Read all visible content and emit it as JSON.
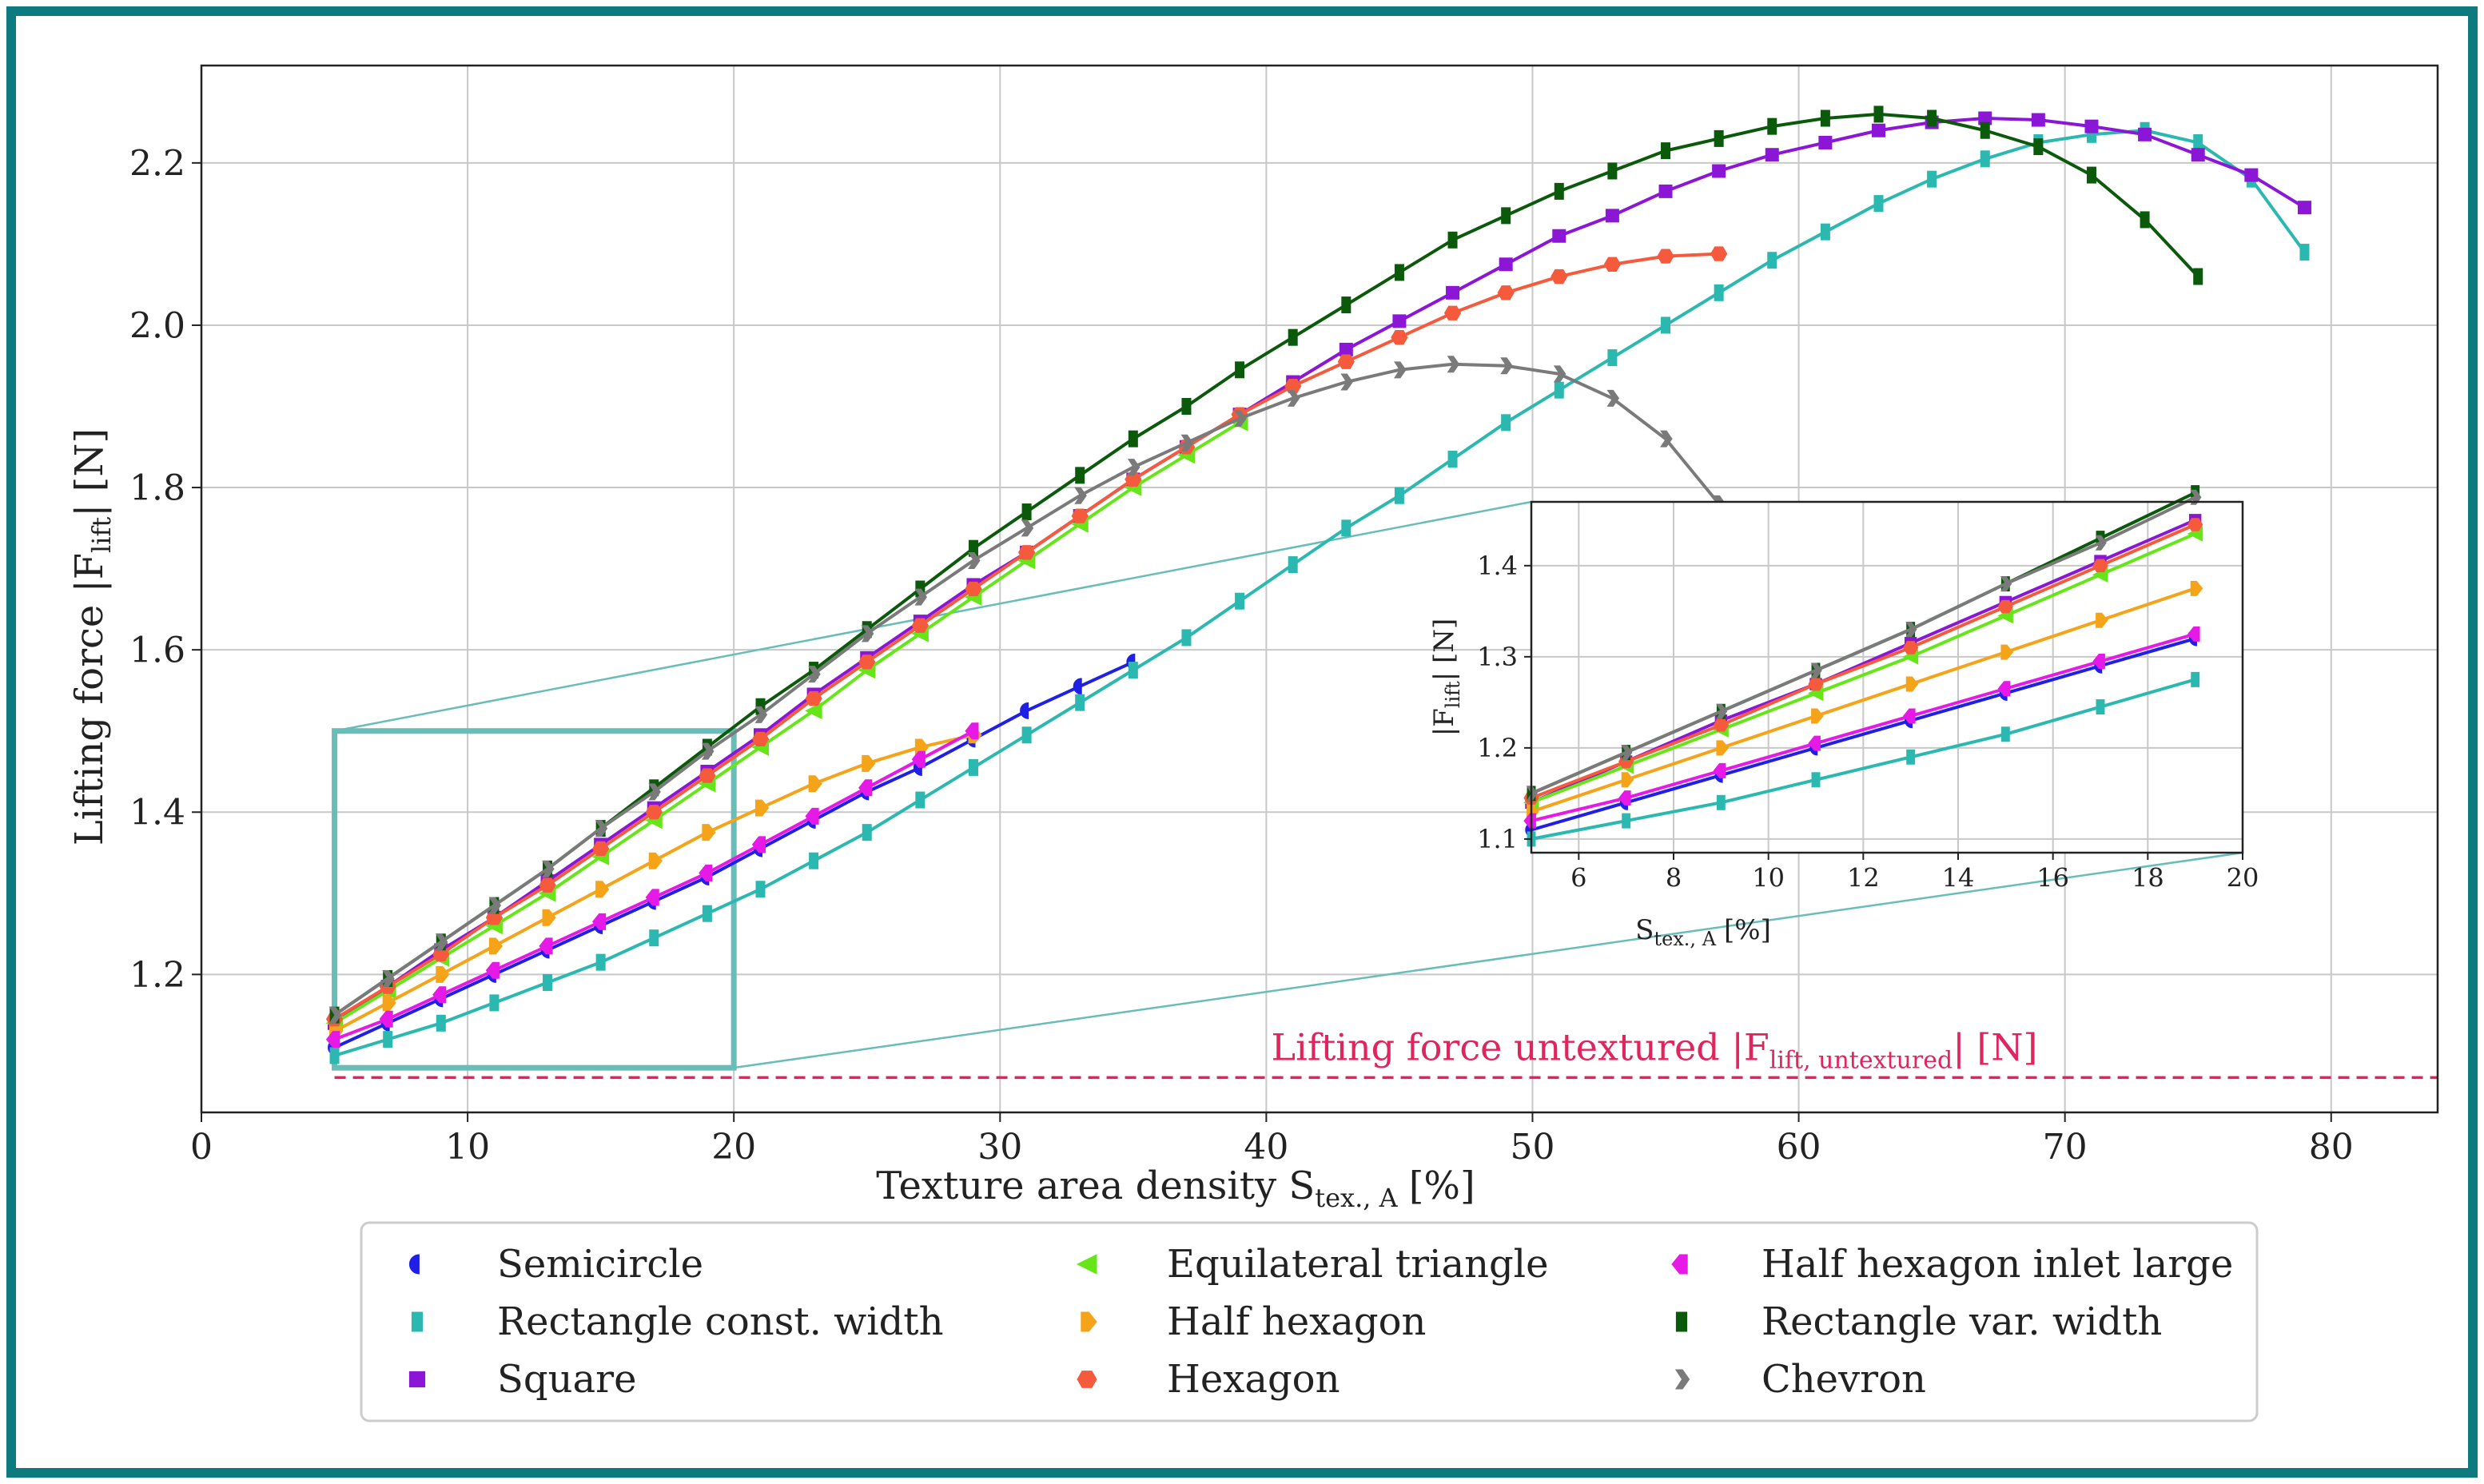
{
  "chart_data": {
    "type": "line",
    "main": {
      "xlabel": "Texture area density S",
      "xlabel_sub": "tex., A",
      "xlabel_unit": "[%]",
      "ylabel": "Lifting force  |F",
      "ylabel_sub": "lift",
      "ylabel_unit": "|  [N]",
      "xlim": [
        0,
        84
      ],
      "ylim": [
        1.03,
        2.32
      ],
      "xticks": [
        0,
        10,
        20,
        30,
        40,
        50,
        60,
        70,
        80
      ],
      "yticks": [
        1.2,
        1.4,
        1.6,
        1.8,
        2.0,
        2.2
      ],
      "ytick_labels": [
        "1.2",
        "1.4",
        "1.6",
        "1.8",
        "2.0",
        "2.2"
      ],
      "grid": true,
      "zoom_box": {
        "x": [
          5,
          20
        ],
        "y": [
          1.085,
          1.5
        ]
      }
    },
    "reference": {
      "label": "Lifting force untextured  |F",
      "label_sub": "lift, untextured",
      "label_unit": "|  [N]",
      "value": 1.073,
      "x_range": [
        5,
        84
      ],
      "color": "#e0245e"
    },
    "inset": {
      "xlabel": "S",
      "xlabel_sub": "tex., A",
      "xlabel_unit": "[%]",
      "ylabel": "|F",
      "ylabel_sub": "lift",
      "ylabel_unit": "|  [N]",
      "xlim": [
        5,
        20
      ],
      "ylim": [
        1.085,
        1.47
      ],
      "xticks": [
        6,
        8,
        10,
        12,
        14,
        16,
        18,
        20
      ],
      "yticks": [
        1.1,
        1.2,
        1.3,
        1.4
      ],
      "ytick_labels": [
        "1.1",
        "1.2",
        "1.3",
        "1.4"
      ],
      "grid": true
    },
    "series": [
      {
        "name": "Semicircle",
        "color": "#1f1fe6",
        "marker": "semicircle",
        "x": [
          5,
          7,
          9,
          11,
          13,
          15,
          17,
          19,
          21,
          23,
          25,
          27,
          29,
          31,
          33,
          35
        ],
        "y": [
          1.11,
          1.14,
          1.17,
          1.2,
          1.23,
          1.26,
          1.29,
          1.32,
          1.355,
          1.39,
          1.425,
          1.455,
          1.49,
          1.525,
          1.555,
          1.585
        ]
      },
      {
        "name": "Rectangle const. width",
        "color": "#2bb8b0",
        "marker": "rect-tall",
        "x": [
          5,
          7,
          9,
          11,
          13,
          15,
          17,
          19,
          21,
          23,
          25,
          27,
          29,
          31,
          33,
          35,
          37,
          39,
          41,
          43,
          45,
          47,
          49,
          51,
          53,
          55,
          57,
          59,
          61,
          63,
          65,
          67,
          69,
          71,
          73,
          75,
          77,
          79
        ],
        "y": [
          1.1,
          1.12,
          1.14,
          1.165,
          1.19,
          1.215,
          1.245,
          1.275,
          1.305,
          1.34,
          1.375,
          1.415,
          1.455,
          1.495,
          1.535,
          1.575,
          1.615,
          1.66,
          1.705,
          1.75,
          1.79,
          1.835,
          1.88,
          1.92,
          1.96,
          2.0,
          2.04,
          2.08,
          2.115,
          2.15,
          2.18,
          2.205,
          2.225,
          2.235,
          2.24,
          2.225,
          2.18,
          2.09
        ]
      },
      {
        "name": "Square",
        "color": "#8b16d6",
        "marker": "square",
        "x": [
          5,
          7,
          9,
          11,
          13,
          15,
          17,
          19,
          21,
          23,
          25,
          27,
          29,
          31,
          33,
          35,
          37,
          39,
          41,
          43,
          45,
          47,
          49,
          51,
          53,
          55,
          57,
          59,
          61,
          63,
          65,
          67,
          69,
          71,
          73,
          75,
          77,
          79
        ],
        "y": [
          1.14,
          1.185,
          1.23,
          1.27,
          1.315,
          1.36,
          1.405,
          1.45,
          1.495,
          1.545,
          1.59,
          1.635,
          1.68,
          1.72,
          1.765,
          1.81,
          1.85,
          1.89,
          1.93,
          1.97,
          2.005,
          2.04,
          2.075,
          2.11,
          2.135,
          2.165,
          2.19,
          2.21,
          2.225,
          2.24,
          2.25,
          2.255,
          2.253,
          2.245,
          2.235,
          2.21,
          2.185,
          2.145
        ]
      },
      {
        "name": "Equilateral triangle",
        "color": "#66e619",
        "marker": "triangle-left",
        "x": [
          5,
          7,
          9,
          11,
          13,
          15,
          17,
          19,
          21,
          23,
          25,
          27,
          29,
          31,
          33,
          35,
          37,
          39
        ],
        "y": [
          1.14,
          1.18,
          1.22,
          1.26,
          1.3,
          1.345,
          1.39,
          1.435,
          1.48,
          1.525,
          1.575,
          1.62,
          1.665,
          1.71,
          1.755,
          1.8,
          1.84,
          1.88
        ]
      },
      {
        "name": "Half hexagon",
        "color": "#f5a319",
        "marker": "half-hexagon-right",
        "x": [
          5,
          7,
          9,
          11,
          13,
          15,
          17,
          19,
          21,
          23,
          25,
          27,
          29
        ],
        "y": [
          1.13,
          1.165,
          1.2,
          1.235,
          1.27,
          1.305,
          1.34,
          1.375,
          1.405,
          1.435,
          1.46,
          1.48,
          1.495
        ]
      },
      {
        "name": "Hexagon",
        "color": "#f55a3c",
        "marker": "hexagon",
        "x": [
          5,
          7,
          9,
          11,
          13,
          15,
          17,
          19,
          21,
          23,
          25,
          27,
          29,
          31,
          33,
          35,
          37,
          39,
          41,
          43,
          45,
          47,
          49,
          51,
          53,
          55,
          57
        ],
        "y": [
          1.145,
          1.185,
          1.225,
          1.27,
          1.31,
          1.355,
          1.4,
          1.445,
          1.49,
          1.54,
          1.585,
          1.63,
          1.675,
          1.72,
          1.765,
          1.81,
          1.85,
          1.89,
          1.925,
          1.955,
          1.985,
          2.015,
          2.04,
          2.06,
          2.075,
          2.085,
          2.088
        ]
      },
      {
        "name": "Half hexagon inlet large",
        "color": "#e619e6",
        "marker": "half-hexagon-left",
        "x": [
          5,
          7,
          9,
          11,
          13,
          15,
          17,
          19,
          21,
          23,
          25,
          27,
          29
        ],
        "y": [
          1.12,
          1.145,
          1.175,
          1.205,
          1.235,
          1.265,
          1.295,
          1.325,
          1.36,
          1.395,
          1.43,
          1.465,
          1.5
        ]
      },
      {
        "name": "Rectangle var. width",
        "color": "#0b5a0b",
        "marker": "rect-tall",
        "x": [
          5,
          7,
          9,
          11,
          13,
          15,
          17,
          19,
          21,
          23,
          25,
          27,
          29,
          31,
          33,
          35,
          37,
          39,
          41,
          43,
          45,
          47,
          49,
          51,
          53,
          55,
          57,
          59,
          61,
          63,
          65,
          67,
          69,
          71,
          73,
          75
        ],
        "y": [
          1.15,
          1.195,
          1.24,
          1.285,
          1.33,
          1.38,
          1.43,
          1.48,
          1.53,
          1.575,
          1.625,
          1.675,
          1.725,
          1.77,
          1.815,
          1.86,
          1.9,
          1.945,
          1.985,
          2.025,
          2.065,
          2.105,
          2.135,
          2.165,
          2.19,
          2.215,
          2.23,
          2.245,
          2.255,
          2.26,
          2.255,
          2.24,
          2.22,
          2.185,
          2.13,
          2.06
        ]
      },
      {
        "name": "Chevron",
        "color": "#7a7a7a",
        "marker": "chevron",
        "x": [
          5,
          7,
          9,
          11,
          13,
          15,
          17,
          19,
          21,
          23,
          25,
          27,
          29,
          31,
          33,
          35,
          37,
          39,
          41,
          43,
          45,
          47,
          49,
          51,
          53,
          55,
          57
        ],
        "y": [
          1.15,
          1.195,
          1.24,
          1.285,
          1.33,
          1.38,
          1.425,
          1.475,
          1.52,
          1.57,
          1.62,
          1.665,
          1.71,
          1.75,
          1.79,
          1.825,
          1.855,
          1.885,
          1.91,
          1.93,
          1.945,
          1.952,
          1.95,
          1.94,
          1.91,
          1.86,
          1.78
        ]
      }
    ],
    "legend": {
      "placement": "bottom",
      "columns": [
        [
          "Semicircle",
          "Rectangle const. width",
          "Square"
        ],
        [
          "Equilateral triangle",
          "Half hexagon",
          "Hexagon"
        ],
        [
          "Half hexagon inlet large",
          "Rectangle var. width",
          "Chevron"
        ]
      ]
    },
    "colors": {
      "frame": "#0d7a80",
      "grid": "#c8c8c8",
      "zoom": "#68bdb9"
    }
  }
}
